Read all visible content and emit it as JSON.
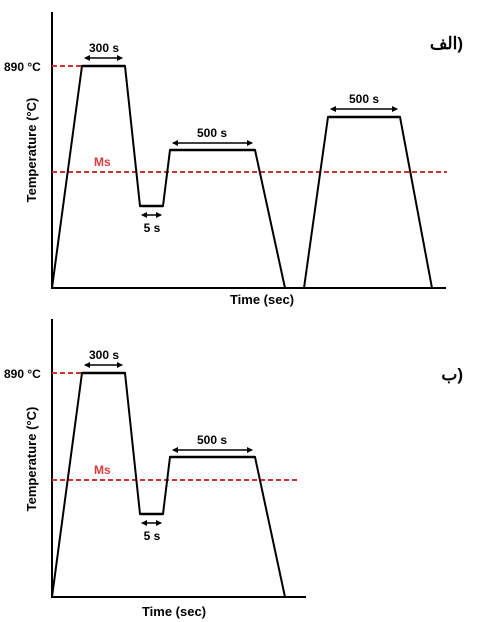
{
  "panels": [
    {
      "id": "alef",
      "panel_label": "الف)",
      "x_axis_label": "Time (sec)",
      "y_axis_label": "Temperature (°C)",
      "temp_label": "890 °C",
      "ms_label": "Ms",
      "hold_labels": [
        "300 s",
        "5 s",
        "500 s",
        "500 s"
      ]
    },
    {
      "id": "be",
      "panel_label": "ب)",
      "x_axis_label": "Time (sec)",
      "y_axis_label": "Temperature (°C)",
      "temp_label": "890 °C",
      "ms_label": "Ms",
      "hold_labels": [
        "300 s",
        "5 s",
        "500 s"
      ]
    }
  ],
  "colors": {
    "line": "#000000",
    "reference_dashed": "#d23030",
    "ms_text": "#d63a3a"
  }
}
